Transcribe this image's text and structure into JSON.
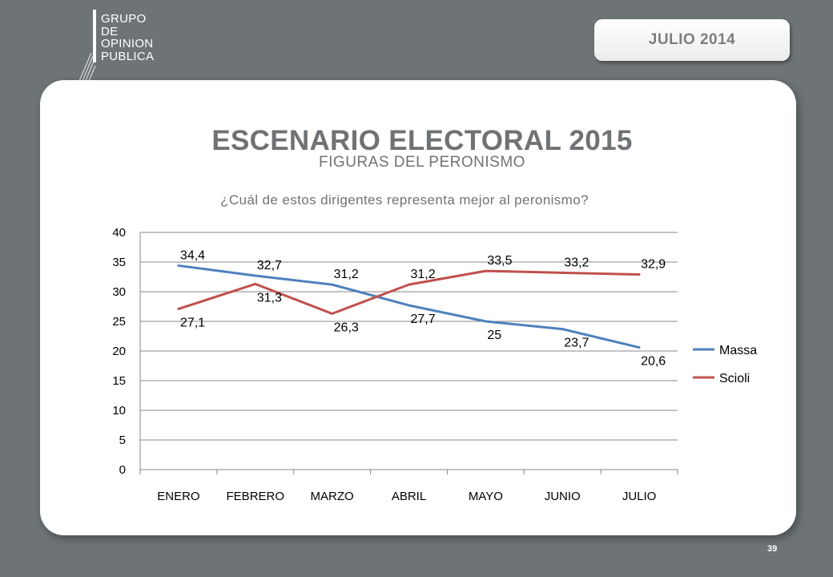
{
  "logo": {
    "lines": [
      "GRUPO",
      "DE",
      "OPINION",
      "PUBLICA"
    ]
  },
  "date_badge": "JULIO  2014",
  "title": "ESCENARIO ELECTORAL 2015",
  "subtitle": "FIGURAS DEL PERONISMO",
  "page_number": "39",
  "colors": {
    "background": "#6e7476",
    "massa": "#4f81bd",
    "scioli": "#c0504d",
    "text_gray": "#6f7275"
  },
  "chart_data": {
    "type": "line",
    "title": "¿Cuál de estos dirigentes representa mejor al peronismo?",
    "categories": [
      "ENERO",
      "FEBRERO",
      "MARZO",
      "ABRIL",
      "MAYO",
      "JUNIO",
      "JULIO"
    ],
    "ylim": [
      0,
      40
    ],
    "yticks": [
      0,
      5,
      10,
      15,
      20,
      25,
      30,
      35,
      40
    ],
    "grid": true,
    "legend": "right",
    "series": [
      {
        "name": "Massa",
        "color": "#4f81bd",
        "values": [
          34.4,
          32.7,
          31.2,
          27.7,
          25,
          23.7,
          20.6
        ],
        "labels": [
          "34,4",
          "32,7",
          "31,2",
          "27,7",
          "25",
          "23,7",
          "20,6"
        ]
      },
      {
        "name": "Scioli",
        "color": "#c0504d",
        "values": [
          27.1,
          31.3,
          26.3,
          31.2,
          33.5,
          33.2,
          32.9
        ],
        "labels": [
          "27,1",
          "31,3",
          "26,3",
          "31,2",
          "33,5",
          "33,2",
          "32,9"
        ]
      }
    ]
  }
}
